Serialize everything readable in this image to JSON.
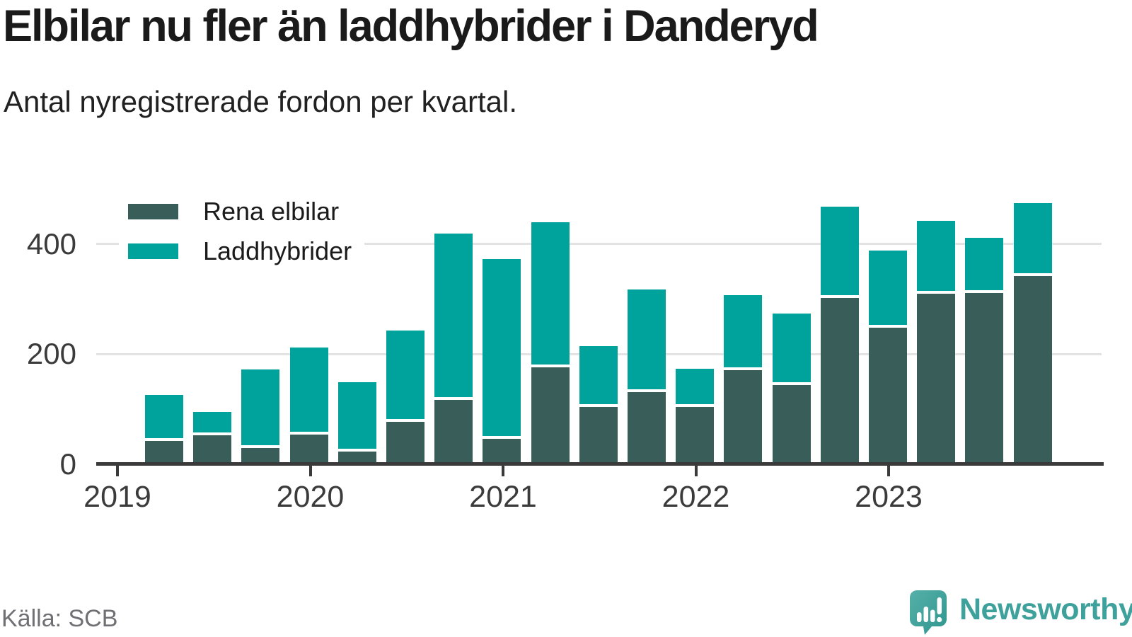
{
  "title": "Elbilar nu fler än laddhybrider i Danderyd",
  "subtitle": "Antal nyregistrerade fordon per kvartal.",
  "source": "Källa: SCB",
  "branding": {
    "logo_text": "Newsworthy",
    "logo_icon": "newsworthy-speech-bubble-bar-chart-icon",
    "logo_color": "#3fa19b"
  },
  "colors": {
    "elbilar_dark_teal": "#395e5a",
    "laddhybrider_teal": "#00a39b",
    "axis": "#3a3a3a",
    "gridline": "#e3e3e3",
    "axis_text": "#3b3b3b",
    "title_text": "#1a1a1a",
    "muted_text": "#6f6f74",
    "background": "#ffffff"
  },
  "chart_data": {
    "type": "bar",
    "stacked": true,
    "title": "Elbilar nu fler än laddhybrider i Danderyd",
    "subtitle": "Antal nyregistrerade fordon per kvartal.",
    "source": "Källa: SCB",
    "categories": [
      "2019 Q1",
      "2019 Q2",
      "2019 Q3",
      "2019 Q4",
      "2020 Q1",
      "2020 Q2",
      "2020 Q3",
      "2020 Q4",
      "2021 Q1",
      "2021 Q2",
      "2021 Q3",
      "2021 Q4",
      "2022 Q1",
      "2022 Q2",
      "2022 Q3",
      "2022 Q4",
      "2023 Q1",
      "2023 Q2",
      "2023 Q3"
    ],
    "series": [
      {
        "name": "Rena elbilar",
        "color": "#395e5a",
        "values": [
          40,
          50,
          27,
          51,
          21,
          74,
          114,
          44,
          174,
          102,
          129,
          102,
          168,
          142,
          300,
          246,
          307,
          309,
          339
        ]
      },
      {
        "name": "Laddhybrider",
        "color": "#00a39b",
        "values": [
          78,
          37,
          137,
          154,
          121,
          161,
          297,
          321,
          258,
          105,
          181,
          64,
          131,
          124,
          160,
          135,
          128,
          94,
          127
        ]
      }
    ],
    "totals": [
      118,
      87,
      164,
      205,
      142,
      235,
      411,
      365,
      432,
      207,
      310,
      166,
      299,
      266,
      460,
      381,
      435,
      403,
      466
    ],
    "xlabel": "",
    "ylabel": "",
    "ylim": [
      0,
      500
    ],
    "yticks": [
      0,
      200,
      400
    ],
    "xticks": [
      "2019",
      "2020",
      "2021",
      "2022",
      "2023"
    ],
    "grid": "horizontal-only",
    "legend_position": "top-left-inside"
  }
}
